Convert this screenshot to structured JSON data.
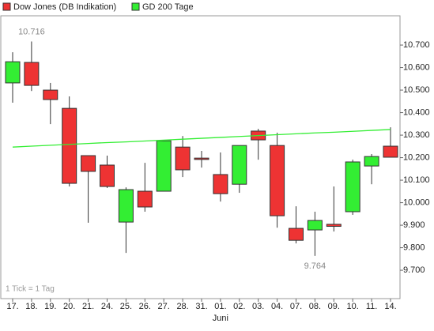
{
  "chart_data": {
    "type": "candlestick",
    "categories": [
      "17.",
      "18.",
      "19.",
      "20.",
      "21.",
      "24.",
      "25.",
      "26.",
      "27.",
      "28.",
      "31.",
      "01.",
      "02.",
      "03.",
      "04.",
      "07.",
      "08.",
      "09.",
      "10.",
      "11.",
      "14."
    ],
    "month_label": "Juni",
    "series": [
      {
        "name": "Dow Jones (DB Indikation)",
        "color": "#ee3333",
        "up_color": "#33ee33",
        "open": [
          10.532,
          10.623,
          10.5,
          10.419,
          10.209,
          10.167,
          9.914,
          10.051,
          10.051,
          10.247,
          10.198,
          10.125,
          10.082,
          10.318,
          10.254,
          9.886,
          9.879,
          9.904,
          9.96,
          10.163,
          10.251
        ],
        "high": [
          10.668,
          10.716,
          10.532,
          10.472,
          10.209,
          10.209,
          10.068,
          10.177,
          10.275,
          10.296,
          10.23,
          10.223,
          10.254,
          10.328,
          10.311,
          9.984,
          9.96,
          10.072,
          10.191,
          10.216,
          10.335
        ],
        "low": [
          10.444,
          10.496,
          10.349,
          10.072,
          9.911,
          10.065,
          9.777,
          9.96,
          10.051,
          10.114,
          10.156,
          10.005,
          10.044,
          10.191,
          9.889,
          9.819,
          9.764,
          9.872,
          9.946,
          10.082,
          10.202
        ],
        "close": [
          10.626,
          10.521,
          10.458,
          10.086,
          10.139,
          10.072,
          10.058,
          9.981,
          10.275,
          10.146,
          10.192,
          10.04,
          10.254,
          10.279,
          9.942,
          9.833,
          9.921,
          9.895,
          10.181,
          10.205,
          10.202
        ]
      },
      {
        "name": "GD 200 Tage",
        "color": "#33ee33",
        "type": "line",
        "values": [
          10.247,
          10.251,
          10.255,
          10.259,
          10.263,
          10.267,
          10.27,
          10.274,
          10.278,
          10.282,
          10.286,
          10.29,
          10.294,
          10.298,
          10.302,
          10.306,
          10.31,
          10.313,
          10.317,
          10.321,
          10.325
        ]
      }
    ],
    "annotations": [
      "10.716",
      "9.764",
      "1 Tick = 1 Tag"
    ],
    "ylim": [
      9.574,
      10.83
    ],
    "yticks": [
      {
        "value": 9.7,
        "label": "9.700"
      },
      {
        "value": 9.8,
        "label": "9.800"
      },
      {
        "value": 9.9,
        "label": "9.900"
      },
      {
        "value": 10.0,
        "label": "10.000"
      },
      {
        "value": 10.1,
        "label": "10.100"
      },
      {
        "value": 10.2,
        "label": "10.200"
      },
      {
        "value": 10.3,
        "label": "10.300"
      },
      {
        "value": 10.4,
        "label": "10.400"
      },
      {
        "value": 10.5,
        "label": "10.500"
      },
      {
        "value": 10.6,
        "label": "10.600"
      },
      {
        "value": 10.7,
        "label": "10.700"
      }
    ],
    "grid": false
  }
}
